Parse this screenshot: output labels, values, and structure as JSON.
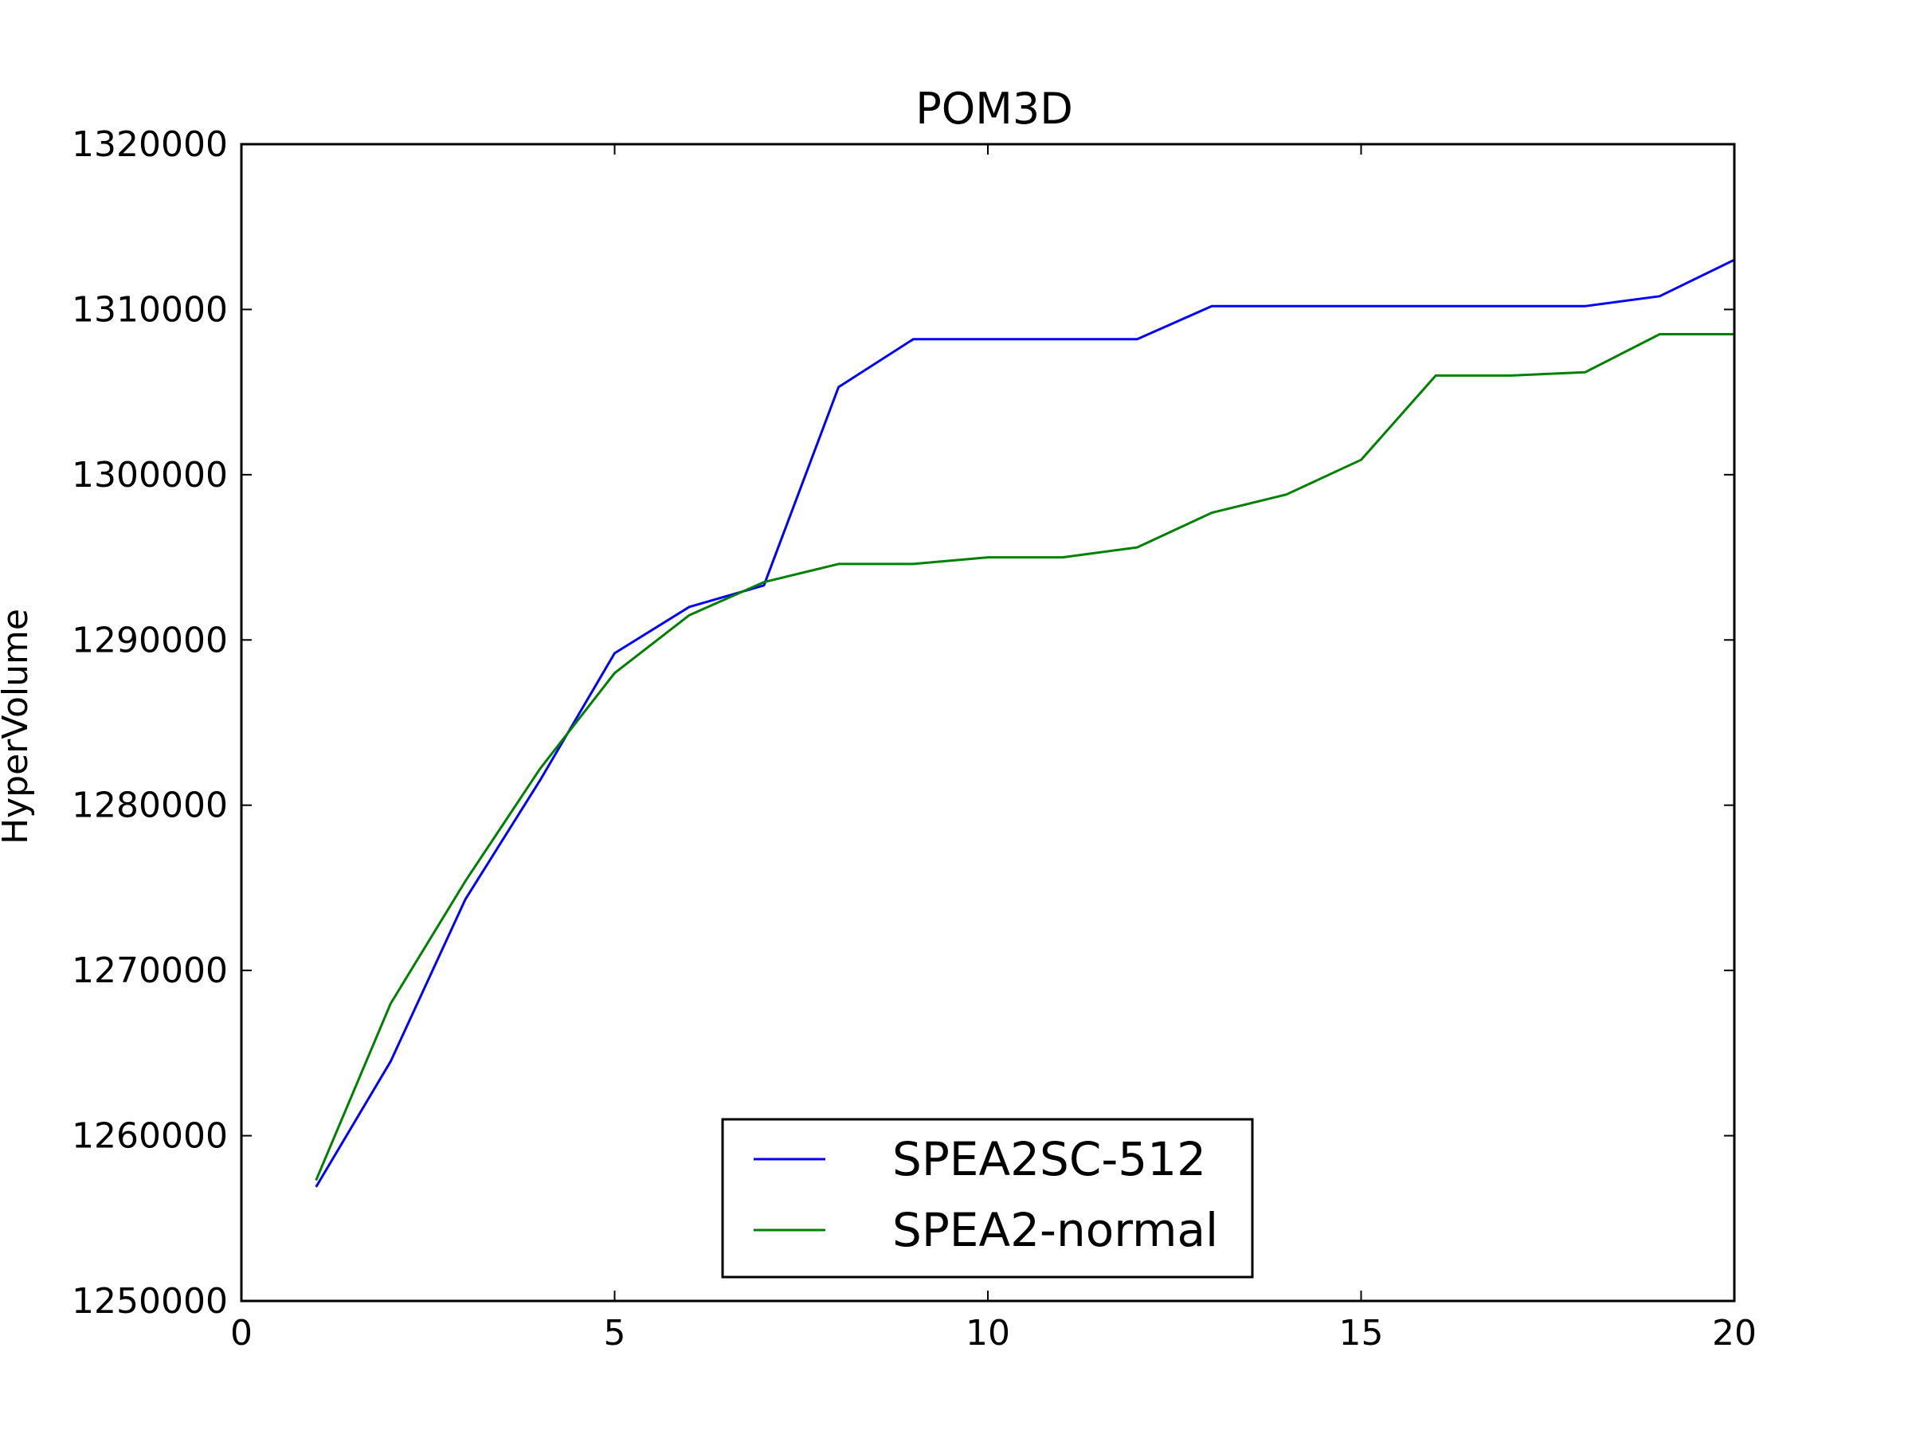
{
  "chart_data": {
    "type": "line",
    "title": "POM3D",
    "xlabel": "",
    "ylabel": "HyperVolume",
    "xlim": [
      0,
      20
    ],
    "ylim": [
      1250000,
      1320000
    ],
    "xticks": [
      0,
      5,
      10,
      15,
      20
    ],
    "xtick_labels": [
      "0",
      "5",
      "10",
      "15",
      "20"
    ],
    "yticks": [
      1250000,
      1260000,
      1270000,
      1280000,
      1290000,
      1300000,
      1310000,
      1320000
    ],
    "ytick_labels": [
      "1250000",
      "1260000",
      "1270000",
      "1280000",
      "1290000",
      "1300000",
      "1310000",
      "1320000"
    ],
    "grid": false,
    "legend_position": "bottom-center",
    "x": [
      1,
      2,
      3,
      4,
      5,
      6,
      7,
      8,
      9,
      10,
      11,
      12,
      13,
      14,
      15,
      16,
      17,
      18,
      19,
      20
    ],
    "series": [
      {
        "name": "SPEA2SC-512",
        "color": "#0000ff",
        "values": [
          1256900,
          1264500,
          1274300,
          1281500,
          1289200,
          1292000,
          1293300,
          1305300,
          1308200,
          1308200,
          1308200,
          1308200,
          1310200,
          1310200,
          1310200,
          1310200,
          1310200,
          1310200,
          1310800,
          1313000
        ]
      },
      {
        "name": "SPEA2-normal",
        "color": "#008000",
        "values": [
          1257300,
          1268000,
          1275400,
          1282200,
          1288000,
          1291500,
          1293500,
          1294600,
          1294600,
          1295000,
          1295000,
          1295600,
          1297700,
          1298800,
          1300900,
          1306000,
          1306000,
          1306200,
          1308500,
          1308500
        ]
      }
    ]
  }
}
